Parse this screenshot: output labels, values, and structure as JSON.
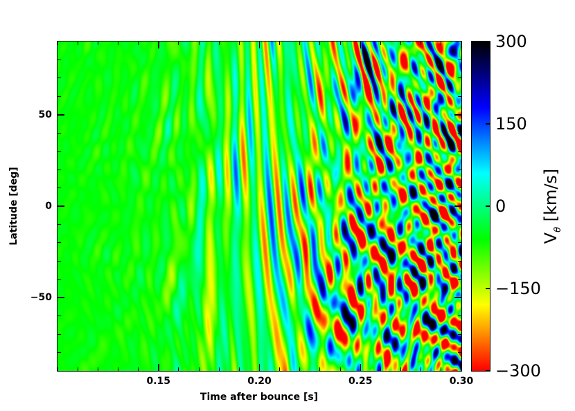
{
  "chart_data": {
    "type": "heatmap",
    "title": "",
    "xlabel": "Time after bounce [s]",
    "ylabel": "Latitude [deg]",
    "colorbar": {
      "label_main": "V",
      "label_sub": "θ",
      "label_unit": " [km/s]",
      "range": [
        -300,
        300
      ],
      "ticks": [
        300,
        150,
        0,
        -150,
        -300
      ],
      "tick_labels": [
        "300",
        "150",
        "0",
        "−150",
        "−300"
      ],
      "colormap": [
        "#ff0000",
        "#ffff00",
        "#00ff00",
        "#00ffff",
        "#0000ff",
        "#000000"
      ]
    },
    "xlim": [
      0.1,
      0.3
    ],
    "ylim": [
      -90,
      90
    ],
    "xticks": [
      0.15,
      0.2,
      0.25,
      0.3
    ],
    "xtick_labels": [
      "0.15",
      "0.20",
      "0.25",
      "0.30"
    ],
    "yticks": [
      50,
      0,
      -50
    ],
    "ytick_labels": [
      "50",
      "0",
      "−50"
    ],
    "description_of_field": {
      "pattern": "Latitudinal velocity fluctuations whose amplitude grows with time after bounce",
      "amplitude_envelope_km_s": [
        {
          "t": 0.1,
          "amp": 15
        },
        {
          "t": 0.15,
          "amp": 60
        },
        {
          "t": 0.18,
          "amp": 150
        },
        {
          "t": 0.22,
          "amp": 260
        },
        {
          "t": 0.25,
          "amp": 400
        },
        {
          "t": 0.3,
          "amp": 520
        }
      ],
      "background_km_s": -60
    }
  }
}
